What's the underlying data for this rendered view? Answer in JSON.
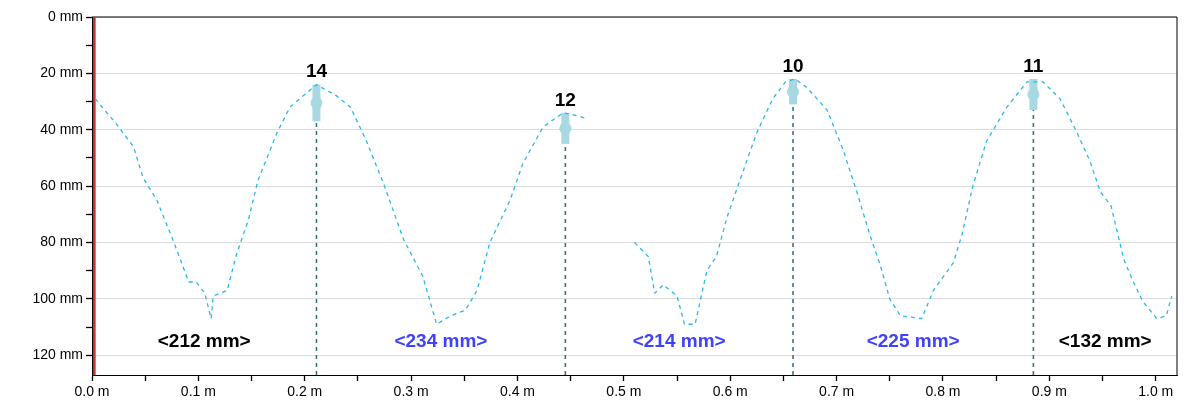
{
  "chart_data": {
    "type": "line",
    "xlim": [
      0,
      1.02
    ],
    "xticks": [
      {
        "value": 0,
        "label": "0.0 m"
      },
      {
        "value": 0.05,
        "label": null
      },
      {
        "value": 0.1,
        "label": "0.1 m"
      },
      {
        "value": 0.15,
        "label": null
      },
      {
        "value": 0.2,
        "label": "0.2 m"
      },
      {
        "value": 0.25,
        "label": null
      },
      {
        "value": 0.3,
        "label": "0.3 m"
      },
      {
        "value": 0.35,
        "label": null
      },
      {
        "value": 0.4,
        "label": "0.4 m"
      },
      {
        "value": 0.45,
        "label": null
      },
      {
        "value": 0.5,
        "label": "0.5 m"
      },
      {
        "value": 0.55,
        "label": null
      },
      {
        "value": 0.6,
        "label": "0.6 m"
      },
      {
        "value": 0.65,
        "label": null
      },
      {
        "value": 0.7,
        "label": "0.7 m"
      },
      {
        "value": 0.75,
        "label": null
      },
      {
        "value": 0.8,
        "label": "0.8 m"
      },
      {
        "value": 0.85,
        "label": null
      },
      {
        "value": 0.9,
        "label": "0.9 m"
      },
      {
        "value": 0.95,
        "label": null
      },
      {
        "value": 1.0,
        "label": "1.0 m"
      }
    ],
    "ylim": [
      127,
      0
    ],
    "yticks": [
      {
        "value": 0,
        "label": "0 mm"
      },
      {
        "value": 10,
        "label": null
      },
      {
        "value": 20,
        "label": "20 mm"
      },
      {
        "value": 30,
        "label": null
      },
      {
        "value": 40,
        "label": "40 mm"
      },
      {
        "value": 50,
        "label": null
      },
      {
        "value": 60,
        "label": "60 mm"
      },
      {
        "value": 70,
        "label": null
      },
      {
        "value": 80,
        "label": "80 mm"
      },
      {
        "value": 90,
        "label": null
      },
      {
        "value": 100,
        "label": "100 mm"
      },
      {
        "value": 110,
        "label": null
      },
      {
        "value": 120,
        "label": "120 mm"
      }
    ],
    "grid": "y",
    "legend": false,
    "line_style": "dashed",
    "series": [
      {
        "color": "#29b8ea",
        "marker": "none",
        "x": [
          0.003,
          0.023,
          0.039,
          0.048,
          0.061,
          0.076,
          0.091,
          0.098,
          0.106,
          0.112,
          0.114,
          0.127,
          0.136,
          0.147,
          0.156,
          0.174,
          0.186,
          0.211,
          0.23,
          0.243,
          0.258,
          0.274,
          0.293,
          0.311,
          0.324,
          0.337,
          0.351,
          0.362,
          0.374,
          0.393,
          0.405,
          0.424,
          0.443,
          0.456,
          0.465,
          0.49,
          0.51,
          0.523,
          0.529,
          0.537,
          0.55,
          0.557,
          0.567,
          0.578,
          0.587,
          0.597,
          0.609,
          0.625,
          0.64,
          0.652,
          0.661,
          0.672,
          0.691,
          0.706,
          0.719,
          0.731,
          0.741,
          0.75,
          0.76,
          0.78,
          0.791,
          0.81,
          0.818,
          0.828,
          0.841,
          0.86,
          0.879,
          0.894,
          0.91,
          0.926,
          0.938,
          0.948,
          0.958,
          0.97,
          0.979,
          0.988,
          1.001,
          1.01,
          1.015
        ],
        "values": [
          29,
          38,
          46,
          57,
          65,
          79,
          94,
          94,
          98,
          107,
          99,
          97,
          84,
          72,
          58,
          41,
          32,
          24,
          28,
          32,
          44,
          59,
          79,
          92,
          109,
          106,
          104,
          97,
          80,
          65,
          52,
          39,
          34,
          35,
          36,
          null,
          80,
          85,
          98,
          95,
          99,
          109,
          109,
          90,
          85,
          71,
          58,
          41,
          29,
          23,
          22,
          25,
          33,
          47,
          62,
          77,
          88,
          100,
          106,
          107,
          97,
          87,
          77,
          60,
          44,
          32,
          23,
          23,
          29,
          41,
          51,
          62,
          67,
          86,
          94,
          101,
          107,
          106,
          99
        ]
      },
      {
        "type": "scatter",
        "color": "#a8d8e2",
        "marker": "circle",
        "x": [
          0.211,
          0.445,
          0.659,
          0.885
        ],
        "values": [
          30.5,
          39.5,
          26.5,
          27.5
        ],
        "errors": [
          [
            24,
            37
          ],
          [
            34,
            45
          ],
          [
            22,
            31
          ],
          [
            22,
            33
          ]
        ]
      }
    ],
    "ref_lines": [
      {
        "axis": "x",
        "value": 0.002,
        "color": "#c9302c",
        "line_style": "solid"
      },
      {
        "axis": "x",
        "value": 0.211,
        "color": "#2e6b7a",
        "line_style": "dashed"
      },
      {
        "axis": "x",
        "value": 0.445,
        "color": "#2e6b7a",
        "line_style": "dashed"
      },
      {
        "axis": "x",
        "value": 0.659,
        "color": "#2e6b7a",
        "line_style": "dashed"
      },
      {
        "axis": "x",
        "value": 0.885,
        "color": "#2e6b7a",
        "line_style": "dashed"
      }
    ],
    "annotations": [
      {
        "text": "14",
        "x": 0.211,
        "y": 24
      },
      {
        "text": "12",
        "x": 0.445,
        "y": 34
      },
      {
        "text": "10",
        "x": 0.659,
        "y": 22
      },
      {
        "text": "11",
        "x": 0.885,
        "y": 22
      },
      "<212 mm>",
      "<234 mm>",
      "<214 mm>",
      "<225 mm>",
      "<132 mm>"
    ]
  }
}
